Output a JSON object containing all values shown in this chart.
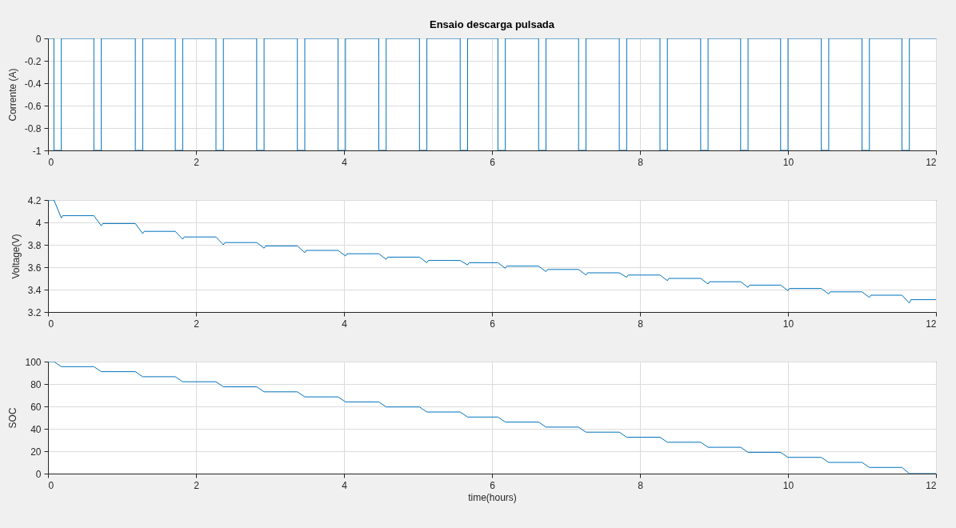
{
  "chart_data": [
    {
      "type": "step",
      "title": "Ensaio descarga pulsada",
      "ylabel": "Corrente (A)",
      "xlim": [
        0,
        12
      ],
      "xticks": [
        0,
        2,
        4,
        6,
        8,
        10,
        12
      ],
      "ylim": [
        -1,
        0
      ],
      "yticks": [
        -1,
        -0.8,
        -0.6,
        -0.4,
        -0.2,
        0
      ],
      "grid": true,
      "x": [
        0,
        0.08,
        0.18,
        0.62,
        0.72,
        1.18,
        1.28,
        1.72,
        1.82,
        2.27,
        2.37,
        2.82,
        2.92,
        3.37,
        3.47,
        3.92,
        4.02,
        4.47,
        4.57,
        5.02,
        5.12,
        5.57,
        5.67,
        6.08,
        6.18,
        6.63,
        6.73,
        7.17,
        7.27,
        7.72,
        7.82,
        8.27,
        8.37,
        8.82,
        8.92,
        9.36,
        9.46,
        9.9,
        10,
        10.45,
        10.55,
        11,
        11.1,
        11.54,
        11.64,
        12
      ],
      "series": [
        {
          "color": "#0072bd",
          "values": [
            0,
            -1,
            0,
            -1,
            0,
            -1,
            0,
            -1,
            0,
            -1,
            0,
            -1,
            0,
            -1,
            0,
            -1,
            0,
            -1,
            0,
            -1,
            0,
            -1,
            0,
            -1,
            0,
            -1,
            0,
            -1,
            0,
            -1,
            0,
            -1,
            0,
            -1,
            0,
            -1,
            0,
            -1,
            0,
            -1,
            0,
            -1,
            0,
            -1,
            0,
            0
          ]
        }
      ]
    },
    {
      "type": "line",
      "ylabel": "Voltage(V)",
      "xlim": [
        0,
        12
      ],
      "xticks": [
        0,
        2,
        4,
        6,
        8,
        10,
        12
      ],
      "ylim": [
        3.2,
        4.2
      ],
      "yticks": [
        3.2,
        3.4,
        3.6,
        3.8,
        4,
        4.2
      ],
      "grid": true,
      "x": [
        0,
        0.08,
        0.18,
        0.2,
        0.62,
        0.72,
        0.74,
        1.18,
        1.28,
        1.3,
        1.72,
        1.82,
        1.84,
        2.27,
        2.37,
        2.39,
        2.82,
        2.92,
        2.94,
        3.37,
        3.47,
        3.49,
        3.92,
        4.02,
        4.04,
        4.47,
        4.57,
        4.59,
        5.02,
        5.12,
        5.14,
        5.57,
        5.67,
        5.69,
        6.08,
        6.18,
        6.2,
        6.63,
        6.73,
        6.75,
        7.17,
        7.27,
        7.29,
        7.72,
        7.82,
        7.84,
        8.27,
        8.37,
        8.39,
        8.82,
        8.92,
        8.94,
        9.36,
        9.46,
        9.48,
        9.9,
        10,
        10.02,
        10.45,
        10.55,
        10.57,
        11,
        11.1,
        11.12,
        11.54,
        11.64,
        11.66,
        12
      ],
      "series": [
        {
          "color": "#0072bd",
          "values": [
            4.2,
            4.2,
            4.04,
            4.06,
            4.06,
            3.97,
            3.99,
            3.99,
            3.9,
            3.92,
            3.92,
            3.85,
            3.87,
            3.87,
            3.8,
            3.82,
            3.82,
            3.77,
            3.79,
            3.79,
            3.73,
            3.75,
            3.75,
            3.7,
            3.72,
            3.72,
            3.67,
            3.69,
            3.69,
            3.64,
            3.66,
            3.66,
            3.62,
            3.64,
            3.64,
            3.59,
            3.61,
            3.61,
            3.56,
            3.58,
            3.58,
            3.53,
            3.55,
            3.55,
            3.51,
            3.53,
            3.53,
            3.48,
            3.5,
            3.5,
            3.45,
            3.47,
            3.47,
            3.42,
            3.44,
            3.44,
            3.39,
            3.41,
            3.41,
            3.36,
            3.38,
            3.38,
            3.33,
            3.35,
            3.35,
            3.28,
            3.31,
            3.31
          ]
        }
      ]
    },
    {
      "type": "line",
      "xlabel": "time(hours)",
      "ylabel": "SOC",
      "xlim": [
        0,
        12
      ],
      "xticks": [
        0,
        2,
        4,
        6,
        8,
        10,
        12
      ],
      "ylim": [
        0,
        100
      ],
      "yticks": [
        0,
        20,
        40,
        60,
        80,
        100
      ],
      "grid": true,
      "x": [
        0,
        0.08,
        0.18,
        0.62,
        0.72,
        1.18,
        1.28,
        1.72,
        1.82,
        2.27,
        2.37,
        2.82,
        2.92,
        3.37,
        3.47,
        3.92,
        4.02,
        4.47,
        4.57,
        5.02,
        5.12,
        5.57,
        5.67,
        6.08,
        6.18,
        6.63,
        6.73,
        7.17,
        7.27,
        7.72,
        7.82,
        8.27,
        8.37,
        8.82,
        8.92,
        9.36,
        9.46,
        9.9,
        10,
        10.45,
        10.55,
        11,
        11.1,
        11.54,
        11.64,
        12
      ],
      "series": [
        {
          "color": "#0072bd",
          "values": [
            100,
            100,
            95.5,
            95.5,
            91,
            91,
            86.5,
            86.5,
            82,
            82,
            77.5,
            77.5,
            73,
            73,
            68.5,
            68.5,
            64,
            64,
            59.5,
            59.5,
            55,
            55,
            50.5,
            50.5,
            46,
            46,
            41.5,
            41.5,
            37,
            37,
            32.5,
            32.5,
            28,
            28,
            23.5,
            23.5,
            19,
            19,
            14.5,
            14.5,
            10,
            10,
            5.5,
            5.5,
            0,
            0
          ]
        }
      ]
    }
  ]
}
